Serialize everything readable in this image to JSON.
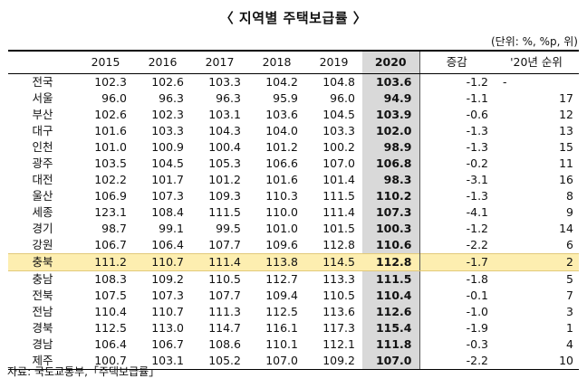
{
  "title": "〈 지역별 주택보급률 〉",
  "unit": "(단위: %, %p, 위)",
  "columns": [
    "",
    "2015",
    "2016",
    "2017",
    "2018",
    "2019",
    "2020",
    "증감",
    "'20년 순위"
  ],
  "rows": [
    {
      "region": "전국",
      "values": [
        "102.3",
        "102.6",
        "103.3",
        "104.2",
        "104.8",
        "103.6"
      ],
      "change": "-1.2",
      "rank": "-"
    },
    {
      "region": "서울",
      "values": [
        "96.0",
        "96.3",
        "96.3",
        "95.9",
        "96.0",
        "94.9"
      ],
      "change": "-1.1",
      "rank": "17"
    },
    {
      "region": "부산",
      "values": [
        "102.6",
        "102.3",
        "103.1",
        "103.6",
        "104.5",
        "103.9"
      ],
      "change": "-0.6",
      "rank": "12"
    },
    {
      "region": "대구",
      "values": [
        "101.6",
        "103.3",
        "104.3",
        "104.0",
        "103.3",
        "102.0"
      ],
      "change": "-1.3",
      "rank": "13"
    },
    {
      "region": "인천",
      "values": [
        "101.0",
        "100.9",
        "100.4",
        "101.2",
        "100.2",
        "98.9"
      ],
      "change": "-1.3",
      "rank": "15"
    },
    {
      "region": "광주",
      "values": [
        "103.5",
        "104.5",
        "105.3",
        "106.6",
        "107.0",
        "106.8"
      ],
      "change": "-0.2",
      "rank": "11"
    },
    {
      "region": "대전",
      "values": [
        "102.2",
        "101.7",
        "101.2",
        "101.6",
        "101.4",
        "98.3"
      ],
      "change": "-3.1",
      "rank": "16"
    },
    {
      "region": "울산",
      "values": [
        "106.9",
        "107.3",
        "109.3",
        "110.3",
        "111.5",
        "110.2"
      ],
      "change": "-1.3",
      "rank": "8"
    },
    {
      "region": "세종",
      "values": [
        "123.1",
        "108.4",
        "111.5",
        "110.0",
        "111.4",
        "107.3"
      ],
      "change": "-4.1",
      "rank": "9"
    },
    {
      "region": "경기",
      "values": [
        "98.7",
        "99.1",
        "99.5",
        "101.0",
        "101.5",
        "100.3"
      ],
      "change": "-1.2",
      "rank": "14"
    },
    {
      "region": "강원",
      "values": [
        "106.7",
        "106.4",
        "107.7",
        "109.6",
        "112.8",
        "110.6"
      ],
      "change": "-2.2",
      "rank": "6"
    },
    {
      "region": "충북",
      "values": [
        "111.2",
        "110.7",
        "111.4",
        "113.8",
        "114.5",
        "112.8"
      ],
      "change": "-1.7",
      "rank": "2"
    },
    {
      "region": "충남",
      "values": [
        "108.3",
        "109.2",
        "110.5",
        "112.7",
        "113.3",
        "111.5"
      ],
      "change": "-1.8",
      "rank": "5"
    },
    {
      "region": "전북",
      "values": [
        "107.5",
        "107.3",
        "107.7",
        "109.4",
        "110.5",
        "110.4"
      ],
      "change": "-0.1",
      "rank": "7"
    },
    {
      "region": "전남",
      "values": [
        "110.4",
        "110.7",
        "111.3",
        "112.5",
        "113.6",
        "112.6"
      ],
      "change": "-1.0",
      "rank": "3"
    },
    {
      "region": "경북",
      "values": [
        "112.5",
        "113.0",
        "114.7",
        "116.1",
        "117.3",
        "115.4"
      ],
      "change": "-1.9",
      "rank": "1"
    },
    {
      "region": "경남",
      "values": [
        "106.4",
        "106.7",
        "108.6",
        "110.1",
        "112.1",
        "111.8"
      ],
      "change": "-0.3",
      "rank": "4"
    },
    {
      "region": "제주",
      "values": [
        "100.7",
        "103.1",
        "105.2",
        "107.0",
        "109.2",
        "107.0"
      ],
      "change": "-2.2",
      "rank": "10"
    }
  ],
  "highlight_region": "충북",
  "colors": {
    "highlight_row": "#fdeeb0",
    "highlight_col": "#d9d9d9"
  },
  "source": "자료: 국토교통부,「주택보급률」"
}
